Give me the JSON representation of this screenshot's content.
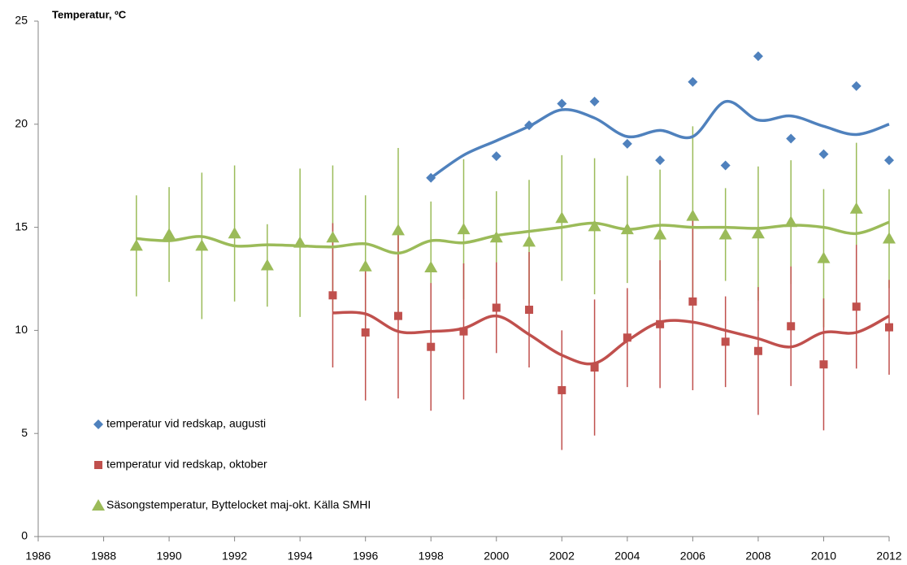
{
  "chart_data": {
    "type": "scatter",
    "title": "Temperatur, ºC",
    "x": [
      1989,
      1990,
      1991,
      1992,
      1993,
      1994,
      1995,
      1996,
      1997,
      1998,
      1999,
      2000,
      2001,
      2002,
      2003,
      2004,
      2005,
      2006,
      2007,
      2008,
      2009,
      2010,
      2011,
      2012
    ],
    "series": [
      {
        "name": "temperatur vid redskap, augusti",
        "color": "#4f81bd",
        "marker": "diamond",
        "values": [
          null,
          null,
          null,
          null,
          null,
          null,
          null,
          null,
          null,
          17.4,
          null,
          18.45,
          19.95,
          21.0,
          21.1,
          19.05,
          18.25,
          22.05,
          18.0,
          23.3,
          19.3,
          18.55,
          21.85,
          18.25
        ],
        "errors": null,
        "trend": [
          null,
          null,
          null,
          null,
          null,
          null,
          null,
          null,
          null,
          17.4,
          18.5,
          19.2,
          19.9,
          20.7,
          20.3,
          19.4,
          19.7,
          19.4,
          21.1,
          20.2,
          20.4,
          19.9,
          19.5,
          20.0
        ]
      },
      {
        "name": "temperatur vid redskap, oktober",
        "color": "#c0504d",
        "marker": "square",
        "values": [
          null,
          null,
          null,
          null,
          null,
          null,
          11.7,
          9.9,
          10.7,
          9.2,
          9.95,
          11.1,
          11.0,
          7.1,
          8.2,
          9.65,
          10.3,
          11.4,
          9.45,
          9.0,
          10.2,
          8.35,
          11.15,
          10.15
        ],
        "errors": [
          null,
          null,
          null,
          null,
          null,
          null,
          3.5,
          3.3,
          4.0,
          3.1,
          3.3,
          2.2,
          2.8,
          2.9,
          3.3,
          2.4,
          3.1,
          4.3,
          2.2,
          3.1,
          2.9,
          3.2,
          3.0,
          2.3
        ],
        "trend": [
          null,
          null,
          null,
          null,
          null,
          null,
          10.85,
          10.8,
          9.95,
          9.95,
          10.1,
          10.7,
          9.8,
          8.8,
          8.4,
          9.5,
          10.4,
          10.4,
          10.0,
          9.6,
          9.2,
          9.9,
          9.9,
          10.7
        ]
      },
      {
        "name": "Säsongstemperatur, Byttelocket maj-okt. Källa SMHI",
        "color": "#9bbb59",
        "marker": "triangle",
        "values": [
          14.1,
          14.65,
          14.1,
          14.7,
          13.15,
          14.25,
          14.5,
          13.1,
          14.85,
          13.05,
          14.9,
          14.5,
          14.3,
          15.45,
          15.05,
          14.9,
          14.65,
          15.55,
          14.65,
          14.7,
          15.25,
          13.5,
          15.9,
          14.45
        ],
        "errors": [
          2.45,
          2.3,
          3.55,
          3.3,
          2.0,
          3.6,
          3.5,
          3.45,
          4.0,
          3.2,
          3.4,
          2.25,
          3.0,
          3.05,
          3.3,
          2.6,
          3.15,
          4.35,
          2.25,
          3.25,
          3.0,
          3.35,
          3.2,
          2.4
        ],
        "trend": [
          14.45,
          14.35,
          14.55,
          14.1,
          14.15,
          14.1,
          14.05,
          14.2,
          13.75,
          14.35,
          14.25,
          14.6,
          14.8,
          15.0,
          15.2,
          14.9,
          15.1,
          15.0,
          15.0,
          14.95,
          15.1,
          15.0,
          14.7,
          15.25
        ]
      }
    ],
    "xlim": [
      1986,
      2012
    ],
    "xticks": [
      1986,
      1988,
      1990,
      1992,
      1994,
      1996,
      1998,
      2000,
      2002,
      2004,
      2006,
      2008,
      2010,
      2012
    ],
    "ylim": [
      0,
      25
    ],
    "yticks": [
      0,
      5,
      10,
      15,
      20,
      25
    ],
    "grid": false,
    "legend": "lower-left"
  }
}
